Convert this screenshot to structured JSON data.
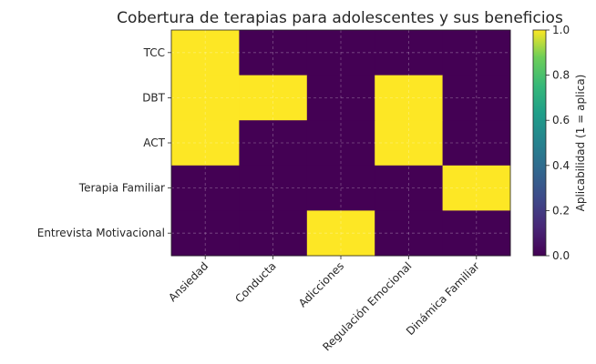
{
  "chart_data": {
    "type": "heatmap",
    "title": "Cobertura de terapias para adolescentes y sus beneficios",
    "x_categories": [
      "Ansiedad",
      "Conducta",
      "Adicciones",
      "Regulación Emocional",
      "Dinámica Familiar"
    ],
    "y_categories": [
      "TCC",
      "DBT",
      "ACT",
      "Terapia Familiar",
      "Entrevista Motivacional"
    ],
    "values": [
      [
        1,
        0,
        0,
        0,
        0
      ],
      [
        1,
        1,
        0,
        1,
        0
      ],
      [
        1,
        0,
        0,
        1,
        0
      ],
      [
        0,
        0,
        0,
        0,
        1
      ],
      [
        0,
        0,
        1,
        0,
        0
      ]
    ],
    "colorbar": {
      "label": "Aplicabilidad (1 = aplica)",
      "range": [
        0,
        1
      ],
      "ticks": [
        "0.0",
        "0.2",
        "0.4",
        "0.6",
        "0.8",
        "1.0"
      ],
      "colormap": "viridis"
    },
    "colors": {
      "low": "#440154",
      "high": "#fde725"
    },
    "grid": true
  }
}
